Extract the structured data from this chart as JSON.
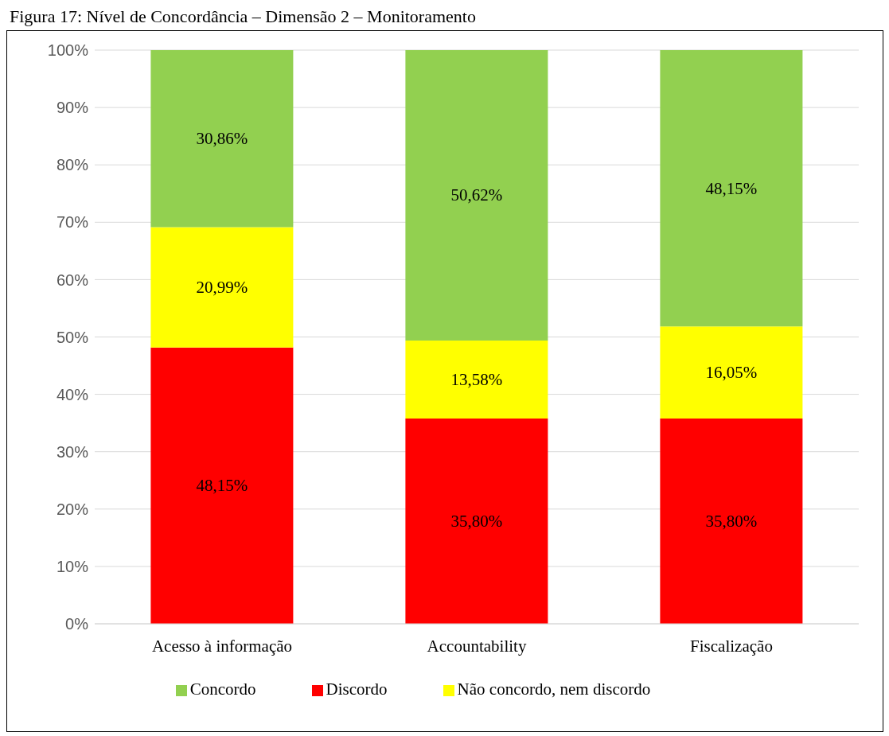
{
  "chart_data": {
    "type": "bar",
    "title": "Figura 17: Nível de Concordância – Dimensão 2 – Monitoramento",
    "categories": [
      "Acesso à informação",
      "Accountability",
      "Fiscalização"
    ],
    "stacked": true,
    "series": [
      {
        "name": "Discordo",
        "color": "#ff0000",
        "values": [
          48.15,
          35.8,
          35.8
        ],
        "value_labels": [
          "48,15%",
          "35,80%",
          "35,80%"
        ]
      },
      {
        "name": "Não concordo, nem discordo",
        "color": "#ffff00",
        "values": [
          20.99,
          13.58,
          16.05
        ],
        "value_labels": [
          "20,99%",
          "13,58%",
          "16,05%"
        ]
      },
      {
        "name": "Concordo",
        "color": "#92d050",
        "values": [
          30.86,
          50.62,
          48.15
        ],
        "value_labels": [
          "30,86%",
          "50,62%",
          "48,15%"
        ]
      }
    ],
    "ylim": [
      0,
      100
    ],
    "yticks": [
      {
        "value": 0,
        "label": "0%"
      },
      {
        "value": 10,
        "label": "10%"
      },
      {
        "value": 20,
        "label": "20%"
      },
      {
        "value": 30,
        "label": "30%"
      },
      {
        "value": 40,
        "label": "40%"
      },
      {
        "value": 50,
        "label": "50%"
      },
      {
        "value": 60,
        "label": "60%"
      },
      {
        "value": 70,
        "label": "70%"
      },
      {
        "value": 80,
        "label": "80%"
      },
      {
        "value": 90,
        "label": "90%"
      },
      {
        "value": 100,
        "label": "100%"
      }
    ],
    "grid": "y",
    "legend": "bottom"
  }
}
